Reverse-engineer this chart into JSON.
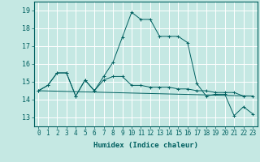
{
  "xlabel": "Humidex (Indice chaleur)",
  "bg_color": "#c5e8e3",
  "grid_color": "#ffffff",
  "line_color": "#006060",
  "xlim": [
    -0.5,
    23.5
  ],
  "ylim": [
    12.5,
    19.5
  ],
  "xticks": [
    0,
    1,
    2,
    3,
    4,
    5,
    6,
    7,
    8,
    9,
    10,
    11,
    12,
    13,
    14,
    15,
    16,
    17,
    18,
    19,
    20,
    21,
    22,
    23
  ],
  "yticks": [
    13,
    14,
    15,
    16,
    17,
    18,
    19
  ],
  "series1_x": [
    0,
    1,
    2,
    3,
    4,
    5,
    6,
    7,
    8,
    9,
    10,
    11,
    12,
    13,
    14,
    15,
    16,
    17,
    18,
    19,
    20,
    21,
    22,
    23
  ],
  "series1_y": [
    14.5,
    14.8,
    15.5,
    15.5,
    14.2,
    15.1,
    14.5,
    15.1,
    15.3,
    15.3,
    14.8,
    14.8,
    14.7,
    14.7,
    14.7,
    14.6,
    14.6,
    14.5,
    14.5,
    14.4,
    14.4,
    14.4,
    14.2,
    14.2
  ],
  "series2_x": [
    0,
    23
  ],
  "series2_y": [
    14.5,
    14.2
  ],
  "series3_x": [
    0,
    1,
    2,
    3,
    4,
    5,
    6,
    7,
    8,
    9,
    10,
    11,
    12,
    13,
    14,
    15,
    16,
    17,
    18,
    19,
    20,
    21,
    22,
    23
  ],
  "series3_y": [
    14.5,
    14.8,
    15.5,
    15.5,
    14.2,
    15.1,
    14.5,
    15.3,
    16.1,
    17.5,
    18.9,
    18.5,
    18.5,
    17.55,
    17.55,
    17.55,
    17.2,
    14.9,
    14.2,
    14.3,
    14.3,
    13.1,
    13.6,
    13.2
  ],
  "xlabel_fontsize": 6.5,
  "tick_fontsize": 5.5
}
